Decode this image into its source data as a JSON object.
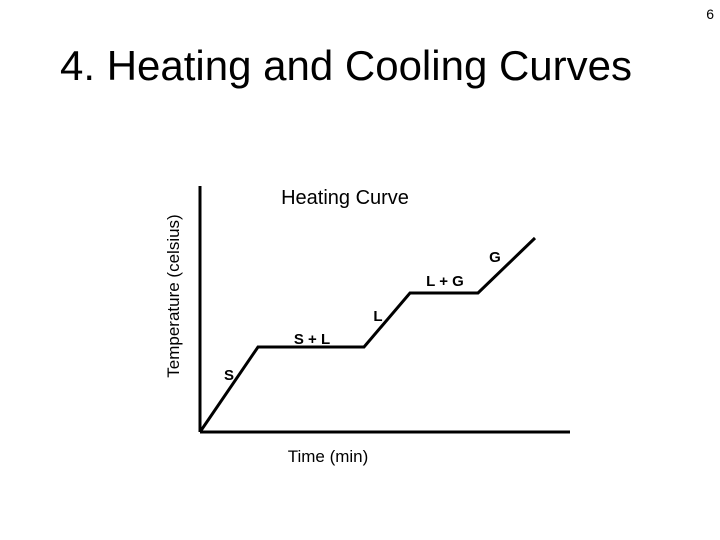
{
  "slide": {
    "number": "6",
    "title": "4. Heating and Cooling Curves"
  },
  "diagram": {
    "title": "Heating Curve",
    "xlabel": "Time (min)",
    "ylabel": "Temperature (celsius)",
    "segment_labels": [
      "S",
      "S + L",
      "L",
      "L + G",
      "G"
    ],
    "colors": {
      "line": "#000000",
      "axis": "#000000"
    }
  }
}
